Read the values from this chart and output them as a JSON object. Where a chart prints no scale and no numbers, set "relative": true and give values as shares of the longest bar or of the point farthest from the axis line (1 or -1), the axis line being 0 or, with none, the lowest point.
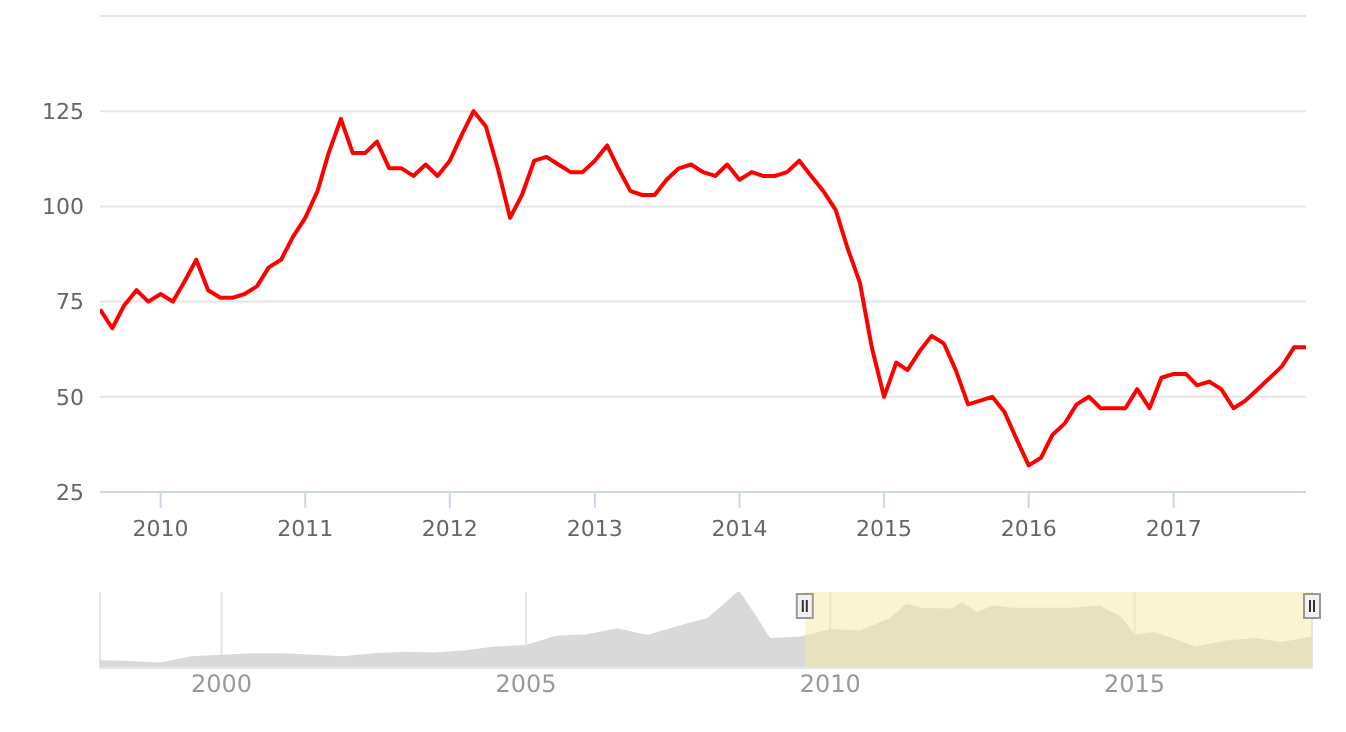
{
  "chart_data": [
    {
      "type": "line",
      "x": [
        "2009-08",
        "2009-09",
        "2009-10",
        "2009-11",
        "2009-12",
        "2010-01",
        "2010-02",
        "2010-03",
        "2010-04",
        "2010-05",
        "2010-06",
        "2010-07",
        "2010-08",
        "2010-09",
        "2010-10",
        "2010-11",
        "2010-12",
        "2011-01",
        "2011-02",
        "2011-03",
        "2011-04",
        "2011-05",
        "2011-06",
        "2011-07",
        "2011-08",
        "2011-09",
        "2011-10",
        "2011-11",
        "2011-12",
        "2012-01",
        "2012-02",
        "2012-03",
        "2012-04",
        "2012-05",
        "2012-06",
        "2012-07",
        "2012-08",
        "2012-09",
        "2012-10",
        "2012-11",
        "2012-12",
        "2013-01",
        "2013-02",
        "2013-03",
        "2013-04",
        "2013-05",
        "2013-06",
        "2013-07",
        "2013-08",
        "2013-09",
        "2013-10",
        "2013-11",
        "2013-12",
        "2014-01",
        "2014-02",
        "2014-03",
        "2014-04",
        "2014-05",
        "2014-06",
        "2014-07",
        "2014-08",
        "2014-09",
        "2014-10",
        "2014-11",
        "2014-12",
        "2015-01",
        "2015-02",
        "2015-03",
        "2015-04",
        "2015-05",
        "2015-06",
        "2015-07",
        "2015-08",
        "2015-09",
        "2015-10",
        "2015-11",
        "2015-12",
        "2016-01",
        "2016-02",
        "2016-03",
        "2016-04",
        "2016-05",
        "2016-06",
        "2016-07",
        "2016-08",
        "2016-09",
        "2016-10",
        "2016-11",
        "2016-12",
        "2017-01",
        "2017-02",
        "2017-03",
        "2017-04",
        "2017-05",
        "2017-06",
        "2017-07",
        "2017-08",
        "2017-09",
        "2017-10",
        "2017-11",
        "2017-12"
      ],
      "series": [
        {
          "color": "#ff0000",
          "values": [
            73,
            68,
            74,
            78,
            75,
            77,
            75,
            80,
            86,
            78,
            76,
            76,
            77,
            79,
            84,
            86,
            92,
            97,
            104,
            114,
            123,
            114,
            114,
            117,
            110,
            110,
            108,
            111,
            108,
            112,
            119,
            125,
            121,
            110,
            97,
            103,
            112,
            113,
            111,
            109,
            109,
            112,
            116,
            110,
            104,
            103,
            103,
            107,
            110,
            111,
            109,
            108,
            111,
            107,
            109,
            108,
            108,
            109,
            112,
            108,
            104,
            99,
            89,
            80,
            63,
            50,
            59,
            57,
            62,
            66,
            64,
            57,
            48,
            49,
            50,
            46,
            39,
            32,
            34,
            40,
            43,
            48,
            50,
            47,
            47,
            47,
            52,
            47,
            55,
            56,
            56,
            53,
            54,
            52,
            47,
            49,
            52,
            55,
            58,
            63,
            63
          ]
        }
      ],
      "xlim": [
        "2009-08",
        "2017-12"
      ],
      "xticks": [
        "2010",
        "2011",
        "2012",
        "2013",
        "2014",
        "2015",
        "2016",
        "2017"
      ],
      "ylim": [
        25,
        150
      ],
      "yticks": [
        25,
        50,
        75,
        100,
        125,
        {
          "value": 150,
          "label": null
        }
      ],
      "grid": "y"
    },
    {
      "type": "area",
      "relative": true,
      "x": [
        "1998-01",
        "1998-07",
        "1999-01",
        "1999-07",
        "2000-01",
        "2000-07",
        "2001-01",
        "2001-07",
        "2002-01",
        "2002-07",
        "2003-01",
        "2003-07",
        "2004-01",
        "2004-07",
        "2005-01",
        "2005-07",
        "2006-01",
        "2006-07",
        "2007-01",
        "2007-07",
        "2008-01",
        "2008-07",
        "2008-10",
        "2009-01",
        "2009-07",
        "2010-01",
        "2010-07",
        "2011-01",
        "2011-04",
        "2011-07",
        "2012-01",
        "2012-03",
        "2012-06",
        "2012-09",
        "2013-01",
        "2013-07",
        "2014-01",
        "2014-06",
        "2014-10",
        "2015-01",
        "2015-05",
        "2016-01",
        "2016-07",
        "2017-01",
        "2017-06",
        "2017-12"
      ],
      "series": [
        {
          "color": "#d9d9d9",
          "values": [
            0.09,
            0.08,
            0.06,
            0.14,
            0.16,
            0.18,
            0.18,
            0.16,
            0.14,
            0.18,
            0.2,
            0.19,
            0.22,
            0.27,
            0.29,
            0.41,
            0.43,
            0.51,
            0.42,
            0.54,
            0.65,
            1,
            0.7,
            0.38,
            0.4,
            0.5,
            0.48,
            0.65,
            0.83,
            0.78,
            0.77,
            0.85,
            0.72,
            0.81,
            0.78,
            0.78,
            0.78,
            0.81,
            0.68,
            0.43,
            0.46,
            0.27,
            0.35,
            0.38,
            0.33,
            0.4
          ]
        }
      ],
      "xlim": [
        "1998-01",
        "2017-12"
      ],
      "xticks": [
        "2000",
        "2005",
        "2010",
        "2015"
      ],
      "grid": "x",
      "bands": [
        {
          "axis": "x",
          "from": "2009-08",
          "to": "2017-12",
          "color": "#f7e9a8"
        }
      ]
    }
  ]
}
